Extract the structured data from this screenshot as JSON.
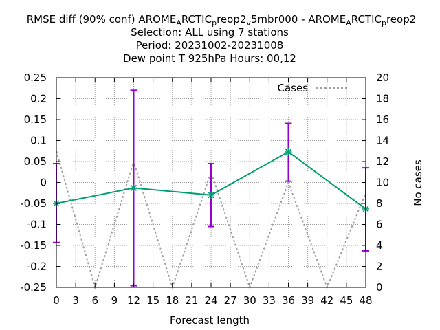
{
  "chart_data": {
    "type": "line",
    "title_lines": [
      "RMSE diff (90% conf) AROME_ARCTIC_preop2_v5mbr000 - AROME_ARCTIC_preop2",
      "Selection: ALL using     7 stations",
      "Period: 20231002-20231008",
      "Dew point T 925hPa   Hours:  00,12"
    ],
    "title_segments": [
      {
        "t": "RMSE diff (90% conf) AROME",
        "sub": false
      },
      {
        "t": "A",
        "sub": true
      },
      {
        "t": "RCTIC",
        "sub": false
      },
      {
        "t": "p",
        "sub": true
      },
      {
        "t": "reop2",
        "sub": false
      },
      {
        "t": "v",
        "sub": true
      },
      {
        "t": "5mbr000 - AROME",
        "sub": false
      },
      {
        "t": "A",
        "sub": true
      },
      {
        "t": "RCTIC",
        "sub": false
      },
      {
        "t": "p",
        "sub": true
      },
      {
        "t": "reop2",
        "sub": false
      }
    ],
    "xlabel": "Forecast length",
    "ylabel": "",
    "y2label": "No cases",
    "xlim": [
      0,
      48
    ],
    "ylim": [
      -0.25,
      0.25
    ],
    "y2lim": [
      0,
      20
    ],
    "xticks": [
      0,
      3,
      6,
      9,
      12,
      15,
      18,
      21,
      24,
      27,
      30,
      33,
      36,
      39,
      42,
      45,
      48
    ],
    "yticks": [
      -0.25,
      -0.2,
      -0.15,
      -0.1,
      -0.05,
      0,
      0.05,
      0.1,
      0.15,
      0.2,
      0.25
    ],
    "ytick_labels": [
      "-0.25",
      "-0.2",
      "-0.15",
      "-0.1",
      "-0.05",
      "0",
      "0.05",
      "0.1",
      "0.15",
      "0.2",
      "0.25"
    ],
    "y2ticks": [
      0,
      2,
      4,
      6,
      8,
      10,
      12,
      14,
      16,
      18,
      20
    ],
    "grid": true,
    "legend": {
      "position": "top-right",
      "label": "Cases"
    },
    "series": [
      {
        "values_x": [
          0,
          12,
          24,
          36,
          48
        ],
        "values_y": [
          -0.05,
          -0.013,
          -0.03,
          0.073,
          -0.063
        ],
        "err_low": [
          -0.143,
          -0.246,
          -0.105,
          0.003,
          -0.163
        ],
        "err_high": [
          0.045,
          0.22,
          0.045,
          0.141,
          0.035
        ],
        "color": "#009e73",
        "errorbar_color": "#9400d3"
      }
    ],
    "cases": {
      "name": "Cases",
      "x": [
        0,
        6,
        12,
        18,
        24,
        30,
        36,
        42,
        48
      ],
      "y": [
        13,
        0,
        12,
        0,
        11,
        0,
        10,
        0,
        9
      ],
      "color": "#a0a0a0"
    }
  }
}
